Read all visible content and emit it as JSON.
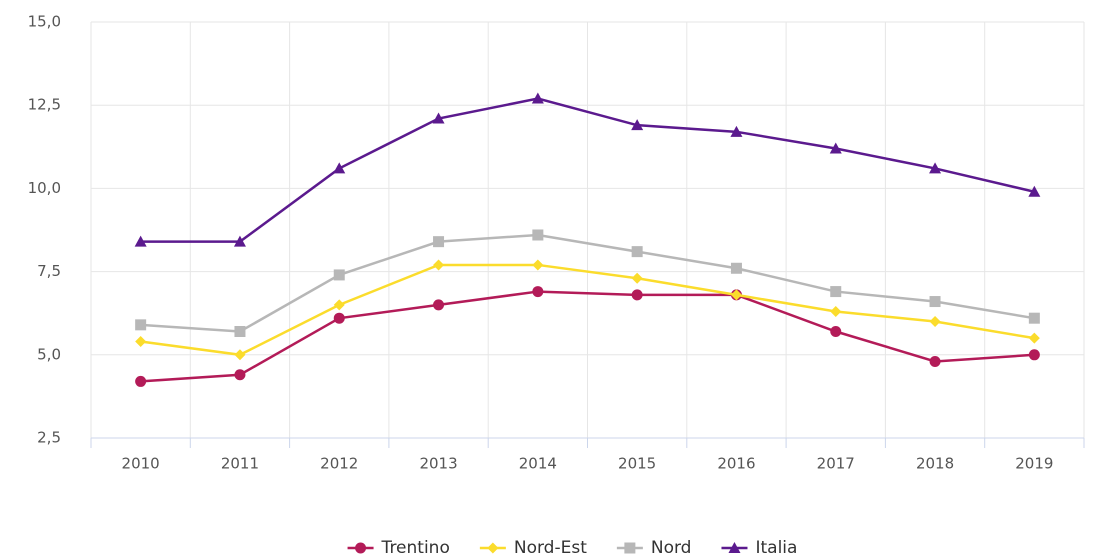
{
  "chart_data": {
    "type": "line",
    "categories": [
      "2010",
      "2011",
      "2012",
      "2013",
      "2014",
      "2015",
      "2016",
      "2017",
      "2018",
      "2019"
    ],
    "series": [
      {
        "name": "Trentino",
        "color": "#b31b58",
        "marker": "circle",
        "values": [
          4.2,
          4.4,
          6.1,
          6.5,
          6.9,
          6.8,
          6.8,
          5.7,
          4.8,
          5.0
        ]
      },
      {
        "name": "Nord-Est",
        "color": "#fbdc2c",
        "marker": "diamond",
        "values": [
          5.4,
          5.0,
          6.5,
          7.7,
          7.7,
          7.3,
          6.8,
          6.3,
          6.0,
          5.5
        ]
      },
      {
        "name": "Nord",
        "color": "#b7b7b7",
        "marker": "square",
        "values": [
          5.9,
          5.7,
          7.4,
          8.4,
          8.6,
          8.1,
          7.6,
          6.9,
          6.6,
          6.1
        ]
      },
      {
        "name": "Italia",
        "color": "#5b1a8e",
        "marker": "triangle",
        "values": [
          8.4,
          8.4,
          10.6,
          12.1,
          12.7,
          11.9,
          11.7,
          11.2,
          10.6,
          9.9
        ]
      }
    ],
    "ylim": [
      2.5,
      15
    ],
    "yticks": [
      {
        "value": 2.5,
        "label": "2,5"
      },
      {
        "value": 5,
        "label": "5,0"
      },
      {
        "value": 7.5,
        "label": "7,5"
      },
      {
        "value": 10,
        "label": "10,0"
      },
      {
        "value": 12.5,
        "label": "12,5"
      },
      {
        "value": 15,
        "label": "15,0"
      }
    ],
    "grid": true,
    "legend": "bottom"
  }
}
